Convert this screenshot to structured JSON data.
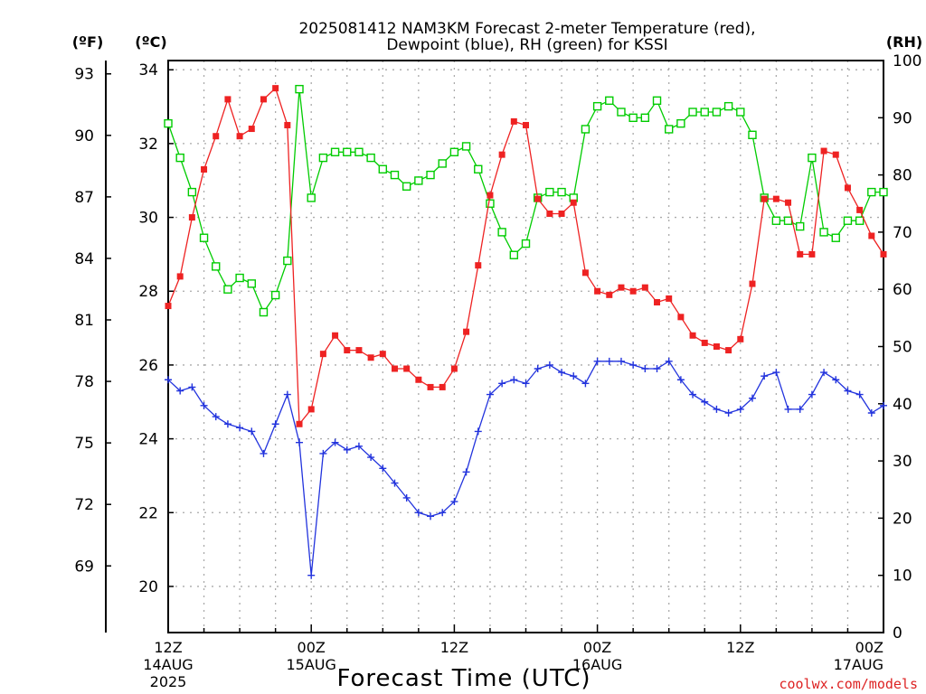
{
  "title_line1": "2025081412 NAM3KM Forecast 2-meter Temperature (red),",
  "title_line2": "Dewpoint (blue), RH (green) for KSSI",
  "unit_f": "(ºF)",
  "unit_c": "(ºC)",
  "unit_rh": "(RH)",
  "xlabel": "Forecast Time (UTC)",
  "credit": "coolwx.com/models",
  "x_ticks": [
    {
      "hour": 0,
      "l1": "12Z",
      "l2": "14AUG",
      "l3": "2025"
    },
    {
      "hour": 12,
      "l1": "00Z",
      "l2": "15AUG",
      "l3": ""
    },
    {
      "hour": 24,
      "l1": "12Z",
      "l2": "",
      "l3": ""
    },
    {
      "hour": 36,
      "l1": "00Z",
      "l2": "16AUG",
      "l3": ""
    },
    {
      "hour": 48,
      "l1": "12Z",
      "l2": "",
      "l3": ""
    },
    {
      "hour": 60,
      "l1": "00Z",
      "l2": "17AUG",
      "l3": ""
    }
  ],
  "colors": {
    "temp": "#ee2222",
    "dew": "#2233dd",
    "rh": "#00cc00",
    "grid": "#aaaaaa",
    "credit": "#dd2222"
  },
  "chart_data": {
    "type": "line",
    "x_unit": "forecast hour from 2025-08-14 12Z",
    "xlim": [
      0,
      60
    ],
    "ylim_c": [
      18.75,
      34.25
    ],
    "ylim_f": [
      65.75,
      93.65
    ],
    "ylim_rh": [
      0,
      100
    ],
    "yticks_c": [
      20,
      22,
      24,
      26,
      28,
      30,
      32,
      34
    ],
    "yticks_f": [
      69,
      72,
      75,
      78,
      81,
      84,
      87,
      90,
      93
    ],
    "yticks_rh": [
      0,
      10,
      20,
      30,
      40,
      50,
      60,
      70,
      80,
      90,
      100
    ],
    "grid": true,
    "x": [
      0,
      1,
      2,
      3,
      4,
      5,
      6,
      7,
      8,
      9,
      10,
      11,
      12,
      13,
      14,
      15,
      16,
      17,
      18,
      19,
      20,
      21,
      22,
      23,
      24,
      25,
      26,
      27,
      28,
      29,
      30,
      31,
      32,
      33,
      34,
      35,
      36,
      37,
      38,
      39,
      40,
      41,
      42,
      43,
      44,
      45,
      46,
      47,
      48,
      49,
      50,
      51,
      52,
      53,
      54,
      55,
      56,
      57,
      58,
      59,
      60
    ],
    "series": [
      {
        "name": "Temperature",
        "axis": "c",
        "unit": "°C",
        "marker": "filled-square",
        "values": [
          27.6,
          28.4,
          30.0,
          31.3,
          32.2,
          33.2,
          32.2,
          32.4,
          33.2,
          33.5,
          32.5,
          24.4,
          24.8,
          26.3,
          26.8,
          26.4,
          26.4,
          26.2,
          26.3,
          25.9,
          25.9,
          25.6,
          25.4,
          25.4,
          25.9,
          26.9,
          28.7,
          30.6,
          31.7,
          32.6,
          32.5,
          30.5,
          30.1,
          30.1,
          30.4,
          28.5,
          28.0,
          27.9,
          28.1,
          28.0,
          28.1,
          27.7,
          27.8,
          27.3,
          26.8,
          26.6,
          26.5,
          26.4,
          26.7,
          28.2,
          30.5,
          30.5,
          30.4,
          29.0,
          29.0,
          31.8,
          31.7,
          30.8,
          30.2,
          29.5,
          29.0
        ]
      },
      {
        "name": "Dewpoint",
        "axis": "c",
        "unit": "°C",
        "marker": "plus",
        "values": [
          25.6,
          25.3,
          25.4,
          24.9,
          24.6,
          24.4,
          24.3,
          24.2,
          23.6,
          24.4,
          25.2,
          23.9,
          20.3,
          23.6,
          23.9,
          23.7,
          23.8,
          23.5,
          23.2,
          22.8,
          22.4,
          22.0,
          21.9,
          22.0,
          22.3,
          23.1,
          24.2,
          25.2,
          25.5,
          25.6,
          25.5,
          25.9,
          26.0,
          25.8,
          25.7,
          25.5,
          26.1,
          26.1,
          26.1,
          26.0,
          25.9,
          25.9,
          26.1,
          25.6,
          25.2,
          25.0,
          24.8,
          24.7,
          24.8,
          25.1,
          25.7,
          25.8,
          24.8,
          24.8,
          25.2,
          25.8,
          25.6,
          25.3,
          25.2,
          24.7,
          24.9
        ]
      },
      {
        "name": "RH",
        "axis": "rh",
        "unit": "%",
        "marker": "open-square",
        "values": [
          89,
          83,
          77,
          69,
          64,
          60,
          62,
          61,
          56,
          59,
          65,
          95,
          76,
          83,
          84,
          84,
          84,
          83,
          81,
          80,
          78,
          79,
          80,
          82,
          84,
          85,
          81,
          75,
          70,
          66,
          68,
          76,
          77,
          77,
          76,
          88,
          92,
          93,
          91,
          90,
          90,
          93,
          88,
          89,
          91,
          91,
          91,
          92,
          91,
          87,
          76,
          72,
          72,
          71,
          83,
          70,
          69,
          72,
          72,
          77,
          77
        ]
      }
    ]
  }
}
